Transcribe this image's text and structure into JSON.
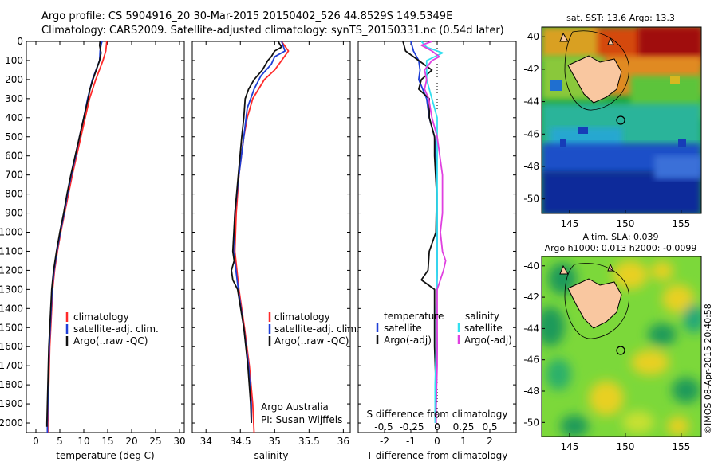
{
  "title": {
    "line1": "Argo profile: CS 5904916_20 30-Mar-2015 20150402_526 44.8529S 149.5349E",
    "line2": "Climatology: CARS2009. Satellite-adjusted climatology: synTS_20150331.nc (0.54d later)"
  },
  "stamp": "©IMOS 08-Apr-2015 20:40:58",
  "colors": {
    "climatology": "#ff2a2a",
    "satellite": "#1f3fd6",
    "argo": "#111111",
    "satellite_salinity": "#33e0f0",
    "argo_salinity": "#e040e0",
    "land": "#f9c7a0"
  },
  "chart_data": [
    {
      "id": "temperature",
      "type": "line",
      "xlabel": "temperature (deg C)",
      "xlim": [
        -2,
        31
      ],
      "xticks": [
        0,
        5,
        10,
        15,
        20,
        25,
        30
      ],
      "ylim": [
        2050,
        0
      ],
      "yticks": [
        0,
        100,
        200,
        300,
        400,
        500,
        600,
        700,
        800,
        900,
        1000,
        1100,
        1200,
        1300,
        1400,
        1500,
        1600,
        1700,
        1800,
        1900,
        2000
      ],
      "legend": [
        "climatology",
        "satellite-adj. clim.",
        "Argo(..raw -QC)"
      ],
      "series": [
        {
          "name": "climatology",
          "color": "climatology",
          "depth": [
            0,
            50,
            100,
            200,
            300,
            400,
            500,
            600,
            700,
            800,
            900,
            1000,
            1100,
            1200,
            1300,
            1400,
            1500,
            1600,
            1700,
            1800,
            1900,
            2000,
            2050
          ],
          "values": [
            14.8,
            14.6,
            14.0,
            12.5,
            11.2,
            10.3,
            9.4,
            8.5,
            7.6,
            6.8,
            6.0,
            5.2,
            4.5,
            3.9,
            3.5,
            3.3,
            3.1,
            2.9,
            2.8,
            2.7,
            2.6,
            2.5,
            2.5
          ]
        },
        {
          "name": "satellite-adj. clim.",
          "color": "satellite",
          "depth": [
            0,
            20,
            50,
            100,
            200,
            300,
            400,
            500,
            600,
            700,
            800,
            900,
            1000,
            1100,
            1200,
            1300,
            1400,
            1500,
            1600,
            1700,
            1800,
            1900,
            2000,
            2050
          ],
          "values": [
            13.8,
            13.6,
            13.4,
            13.3,
            11.8,
            10.8,
            10.0,
            9.1,
            8.3,
            7.4,
            6.6,
            5.9,
            5.1,
            4.4,
            3.8,
            3.4,
            3.2,
            3.0,
            2.8,
            2.7,
            2.6,
            2.5,
            2.4,
            2.4
          ]
        },
        {
          "name": "Argo(..raw -QC)",
          "color": "argo",
          "depth": [
            0,
            20,
            60,
            100,
            150,
            200,
            250,
            300,
            400,
            500,
            600,
            700,
            800,
            900,
            1000,
            1100,
            1200,
            1300,
            1400,
            1500,
            1600,
            1700,
            1800,
            1900,
            2000,
            2020
          ],
          "values": [
            13.4,
            13.3,
            13.6,
            13.3,
            12.6,
            11.9,
            11.3,
            10.9,
            10.0,
            9.1,
            8.2,
            7.3,
            6.5,
            5.8,
            5.0,
            4.3,
            3.7,
            3.3,
            3.1,
            2.9,
            2.7,
            2.6,
            2.5,
            2.4,
            2.3,
            2.3
          ]
        }
      ]
    },
    {
      "id": "salinity",
      "type": "line",
      "xlabel": "salinity",
      "xlim": [
        33.8,
        36.1
      ],
      "xticks": [
        34,
        34.5,
        35,
        35.5,
        36
      ],
      "ylim": [
        2050,
        0
      ],
      "legend": [
        "climatology",
        "satellite-adj. clim.",
        "Argo(..raw -QC)"
      ],
      "annotation": [
        "Argo Australia",
        "PI: Susan Wijffels"
      ],
      "series": [
        {
          "name": "climatology",
          "color": "climatology",
          "depth": [
            0,
            50,
            100,
            150,
            200,
            300,
            400,
            500,
            700,
            900,
            1100,
            1300,
            1500,
            1700,
            1900,
            2050
          ],
          "values": [
            35.1,
            35.2,
            35.1,
            35.0,
            34.85,
            34.68,
            34.6,
            34.55,
            34.48,
            34.44,
            34.42,
            34.48,
            34.56,
            34.63,
            34.68,
            34.7
          ]
        },
        {
          "name": "satellite-adj. clim.",
          "color": "satellite",
          "depth": [
            0,
            50,
            80,
            120,
            180,
            250,
            350,
            500,
            700,
            900,
            1100,
            1300,
            1500,
            1700,
            1900,
            2000
          ],
          "values": [
            35.1,
            35.15,
            35.0,
            34.95,
            34.8,
            34.7,
            34.6,
            34.55,
            34.48,
            34.42,
            34.4,
            34.47,
            34.55,
            34.62,
            34.66,
            34.66
          ]
        },
        {
          "name": "Argo(..raw -QC)",
          "color": "argo",
          "depth": [
            0,
            30,
            50,
            80,
            100,
            150,
            200,
            250,
            300,
            400,
            500,
            700,
            900,
            1100,
            1150,
            1200,
            1250,
            1300,
            1500,
            1700,
            1900,
            2000
          ],
          "values": [
            35.05,
            35.1,
            35.0,
            34.95,
            34.9,
            34.82,
            34.7,
            34.62,
            34.57,
            34.55,
            34.52,
            34.47,
            34.42,
            34.39,
            34.41,
            34.37,
            34.39,
            34.46,
            34.55,
            34.61,
            34.65,
            34.66
          ]
        }
      ]
    },
    {
      "id": "difference",
      "type": "line",
      "xlabel": "T difference from climatology",
      "x2label": "S difference from climatology",
      "xlim": [
        -3,
        3
      ],
      "xticks": [
        -2,
        -1,
        0,
        1,
        2
      ],
      "x2ticks": [
        "-0.5",
        "-0.25",
        "0",
        "0.25",
        "0.5"
      ],
      "ylim": [
        2050,
        0
      ],
      "legend_headers": [
        "temperature",
        "salinity"
      ],
      "legend": [
        "satellite",
        "Argo(-adj)",
        "satellite",
        "Argo(-adj)"
      ],
      "series": [
        {
          "name": "T satellite",
          "color": "satellite",
          "depth": [
            0,
            50,
            100,
            150,
            200,
            300,
            400,
            500,
            600,
            800,
            1000,
            1200,
            1400,
            1600,
            1800,
            2000
          ],
          "values": [
            -1.0,
            -0.9,
            -0.7,
            -0.65,
            -0.7,
            -0.4,
            -0.3,
            -0.1,
            -0.05,
            0,
            0,
            0,
            -0.02,
            0,
            -0.03,
            -0.05
          ]
        },
        {
          "name": "T Argo(-adj)",
          "color": "argo",
          "depth": [
            0,
            50,
            100,
            150,
            200,
            250,
            300,
            400,
            500,
            600,
            800,
            1000,
            1100,
            1200,
            1250,
            1300,
            1400,
            1600,
            1800,
            2000
          ],
          "values": [
            -1.3,
            -1.2,
            -0.7,
            -0.2,
            -0.6,
            -0.7,
            -0.3,
            -0.3,
            -0.1,
            -0.1,
            -0.02,
            -0.05,
            -0.3,
            -0.35,
            -0.6,
            -0.1,
            -0.1,
            -0.1,
            -0.05,
            -0.05
          ]
        },
        {
          "name": "S satellite",
          "color": "satellite_salinity",
          "depth": [
            0,
            30,
            60,
            100,
            200,
            300,
            400,
            600,
            800,
            1000,
            1200,
            1400,
            1600,
            1800,
            2000
          ],
          "values": [
            -0.15,
            -0.1,
            0.05,
            -0.1,
            -0.1,
            -0.05,
            0,
            0,
            0,
            0,
            0,
            -0.01,
            -0.01,
            -0.02,
            -0.02
          ]
        },
        {
          "name": "S Argo(-adj)",
          "color": "argo_salinity",
          "depth": [
            0,
            20,
            50,
            80,
            100,
            150,
            200,
            250,
            300,
            400,
            500,
            700,
            900,
            1000,
            1100,
            1150,
            1200,
            1300,
            1500,
            1700,
            1900,
            2000
          ],
          "values": [
            -0.05,
            -0.15,
            -0.05,
            0.02,
            -0.05,
            -0.12,
            -0.1,
            -0.12,
            -0.08,
            -0.05,
            0,
            0.05,
            0.05,
            0.03,
            0.05,
            0.08,
            0.06,
            0.0,
            0.0,
            0.0,
            -0.01,
            -0.01
          ]
        }
      ]
    },
    {
      "id": "sst_map",
      "type": "heatmap",
      "title": "sat. SST: 13.6 Argo: 13.3",
      "xticks": [
        145,
        150,
        155
      ],
      "yticks": [
        -40,
        -42,
        -44,
        -46,
        -48,
        -50
      ],
      "xlim": [
        142.5,
        156.8
      ],
      "ylim": [
        -50.9,
        -39.4
      ],
      "float_position": [
        149.53,
        -44.85
      ]
    },
    {
      "id": "sla_map",
      "type": "heatmap",
      "title_line1": "Altim. SLA: 0.039",
      "title_line2": "Argo h1000: 0.013 h2000: -0.0099",
      "xticks": [
        145,
        150,
        155
      ],
      "yticks": [
        -40,
        -42,
        -44,
        -46,
        -48,
        -50
      ],
      "xlim": [
        142.5,
        156.8
      ],
      "ylim": [
        -50.9,
        -39.4
      ],
      "float_position": [
        149.53,
        -44.85
      ]
    }
  ]
}
